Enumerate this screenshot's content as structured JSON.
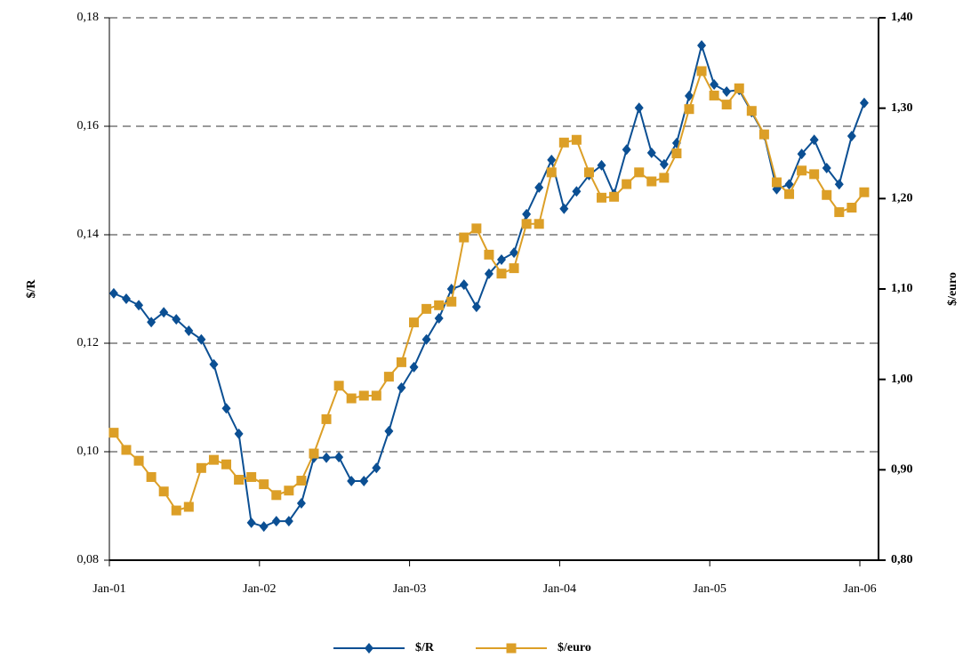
{
  "chart_data": {
    "type": "line",
    "categories": [
      "Jan-01",
      null,
      null,
      null,
      null,
      null,
      null,
      null,
      null,
      null,
      null,
      null,
      "Jan-02",
      null,
      null,
      null,
      null,
      null,
      null,
      null,
      null,
      null,
      null,
      null,
      "Jan-03",
      null,
      null,
      null,
      null,
      null,
      null,
      null,
      null,
      null,
      null,
      null,
      "Jan-04",
      null,
      null,
      null,
      null,
      null,
      null,
      null,
      null,
      null,
      null,
      null,
      "Jan-05",
      null,
      null,
      null,
      null,
      null,
      null,
      null,
      null,
      null,
      null,
      null,
      "Jan-06"
    ],
    "series": [
      {
        "name": "$/R",
        "color": "#0b4f93",
        "marker": "diamond",
        "values": [
          0.1292,
          0.1282,
          0.127,
          0.1239,
          0.1257,
          0.1244,
          0.1223,
          0.1207,
          0.1161,
          0.108,
          0.1033,
          0.0869,
          0.0862,
          0.0872,
          0.0872,
          0.0905,
          0.0989,
          0.0989,
          0.099,
          0.0946,
          0.0946,
          0.097,
          0.1038,
          0.1118,
          0.1156,
          0.1207,
          0.1246,
          0.13,
          0.1308,
          0.1267,
          0.1328,
          0.1354,
          0.1367,
          0.1438,
          0.1487,
          0.1538,
          0.1448,
          0.148,
          0.151,
          0.1528,
          0.1475,
          0.1557,
          0.1634,
          0.1551,
          0.153,
          0.1569,
          0.1656,
          0.1749,
          0.1677,
          0.1664,
          0.1667,
          0.1626,
          0.1584,
          0.1484,
          0.1493,
          0.1549,
          0.1575,
          0.1523,
          0.1493,
          0.1582,
          0.1643
        ]
      },
      {
        "name": "$/euro",
        "color": "#dc9f27",
        "marker": "square",
        "axis": "y2",
        "values": [
          0.941,
          0.922,
          0.91,
          0.892,
          0.876,
          0.855,
          0.859,
          0.902,
          0.911,
          0.906,
          0.889,
          0.892,
          0.884,
          0.872,
          0.877,
          0.888,
          0.918,
          0.956,
          0.993,
          0.979,
          0.982,
          0.982,
          1.003,
          1.019,
          1.063,
          1.078,
          1.082,
          1.086,
          1.157,
          1.167,
          1.138,
          1.117,
          1.123,
          1.172,
          1.172,
          1.229,
          1.262,
          1.265,
          1.229,
          1.201,
          1.202,
          1.216,
          1.229,
          1.219,
          1.223,
          1.25,
          1.299,
          1.341,
          1.314,
          1.304,
          1.322,
          1.297,
          1.271,
          1.218,
          1.205,
          1.231,
          1.227,
          1.204,
          1.185,
          1.19,
          1.207
        ]
      }
    ],
    "ylabel": "$/R",
    "y2label": "$/euro",
    "ylim": [
      0.08,
      0.18
    ],
    "yticks": [
      {
        "value": 0.08,
        "label": "0,08"
      },
      {
        "value": 0.1,
        "label": "0,10"
      },
      {
        "value": 0.12,
        "label": "0,12"
      },
      {
        "value": 0.14,
        "label": "0,14"
      },
      {
        "value": 0.16,
        "label": "0,16"
      },
      {
        "value": 0.18,
        "label": "0,18"
      }
    ],
    "y2lim": [
      0.8,
      1.4
    ],
    "y2ticks": [
      {
        "value": 0.8,
        "label": "0,80"
      },
      {
        "value": 0.9,
        "label": "0,90"
      },
      {
        "value": 1.0,
        "label": "1,00"
      },
      {
        "value": 1.1,
        "label": "1,10"
      },
      {
        "value": 1.2,
        "label": "1,20"
      },
      {
        "value": 1.3,
        "label": "1,30"
      },
      {
        "value": 1.4,
        "label": "1,40"
      }
    ],
    "grid": true,
    "legend": "bottom"
  }
}
